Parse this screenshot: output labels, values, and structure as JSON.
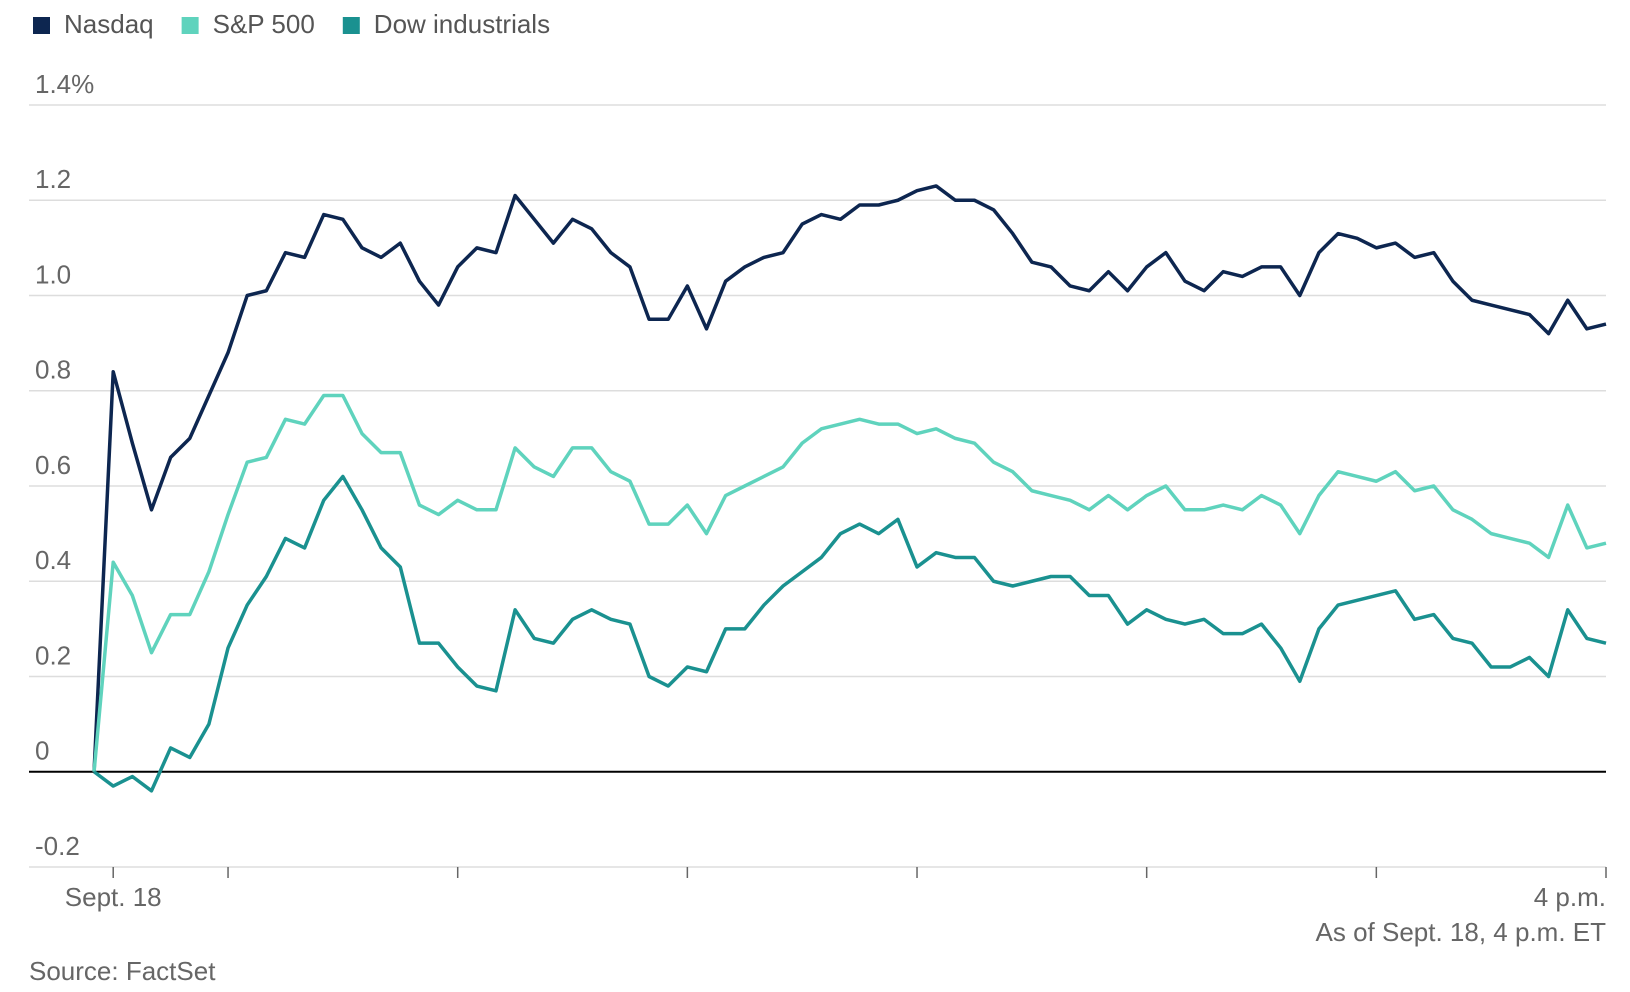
{
  "chart_data": {
    "type": "line",
    "x": [
      -5,
      0,
      5,
      10,
      15,
      20,
      25,
      30,
      35,
      40,
      45,
      50,
      55,
      60,
      65,
      70,
      75,
      80,
      85,
      90,
      95,
      100,
      105,
      110,
      115,
      120,
      125,
      130,
      135,
      140,
      145,
      150,
      155,
      160,
      165,
      170,
      175,
      180,
      185,
      190,
      195,
      200,
      205,
      210,
      215,
      220,
      225,
      230,
      235,
      240,
      245,
      250,
      255,
      260,
      265,
      270,
      275,
      280,
      285,
      290,
      295,
      300,
      305,
      310,
      315,
      320,
      325,
      330,
      335,
      340,
      345,
      350,
      355,
      360,
      365,
      370,
      375,
      380,
      385,
      390
    ],
    "series": [
      {
        "name": "Nasdaq",
        "color": "#0d2650",
        "values": [
          0,
          0.84,
          0.69,
          0.55,
          0.66,
          0.7,
          0.79,
          0.88,
          1.0,
          1.01,
          1.09,
          1.08,
          1.17,
          1.16,
          1.1,
          1.08,
          1.11,
          1.03,
          0.98,
          1.06,
          1.1,
          1.09,
          1.21,
          1.16,
          1.11,
          1.16,
          1.14,
          1.09,
          1.06,
          0.95,
          0.95,
          1.02,
          0.93,
          1.03,
          1.06,
          1.08,
          1.09,
          1.15,
          1.17,
          1.16,
          1.19,
          1.19,
          1.2,
          1.22,
          1.23,
          1.2,
          1.2,
          1.18,
          1.13,
          1.07,
          1.06,
          1.02,
          1.01,
          1.05,
          1.01,
          1.06,
          1.09,
          1.03,
          1.01,
          1.05,
          1.04,
          1.06,
          1.06,
          1.0,
          1.09,
          1.13,
          1.12,
          1.1,
          1.11,
          1.08,
          1.09,
          1.03,
          0.99,
          0.98,
          0.97,
          0.96,
          0.92,
          0.99,
          0.93,
          0.94
        ]
      },
      {
        "name": "S&P 500",
        "color": "#5fd3bd",
        "values": [
          0,
          0.44,
          0.37,
          0.25,
          0.33,
          0.33,
          0.42,
          0.54,
          0.65,
          0.66,
          0.74,
          0.73,
          0.79,
          0.79,
          0.71,
          0.67,
          0.67,
          0.56,
          0.54,
          0.57,
          0.55,
          0.55,
          0.68,
          0.64,
          0.62,
          0.68,
          0.68,
          0.63,
          0.61,
          0.52,
          0.52,
          0.56,
          0.5,
          0.58,
          0.6,
          0.62,
          0.64,
          0.69,
          0.72,
          0.73,
          0.74,
          0.73,
          0.73,
          0.71,
          0.72,
          0.7,
          0.69,
          0.65,
          0.63,
          0.59,
          0.58,
          0.57,
          0.55,
          0.58,
          0.55,
          0.58,
          0.6,
          0.55,
          0.55,
          0.56,
          0.55,
          0.58,
          0.56,
          0.5,
          0.58,
          0.63,
          0.62,
          0.61,
          0.63,
          0.59,
          0.6,
          0.55,
          0.53,
          0.5,
          0.49,
          0.48,
          0.45,
          0.56,
          0.47,
          0.48
        ]
      },
      {
        "name": "Dow industrials",
        "color": "#1a9190",
        "values": [
          0,
          -0.03,
          -0.01,
          -0.04,
          0.05,
          0.03,
          0.1,
          0.26,
          0.35,
          0.41,
          0.49,
          0.47,
          0.57,
          0.62,
          0.55,
          0.47,
          0.43,
          0.27,
          0.27,
          0.22,
          0.18,
          0.17,
          0.34,
          0.28,
          0.27,
          0.32,
          0.34,
          0.32,
          0.31,
          0.2,
          0.18,
          0.22,
          0.21,
          0.3,
          0.3,
          0.35,
          0.39,
          0.42,
          0.45,
          0.5,
          0.52,
          0.5,
          0.53,
          0.43,
          0.46,
          0.45,
          0.45,
          0.4,
          0.39,
          0.4,
          0.41,
          0.41,
          0.37,
          0.37,
          0.31,
          0.34,
          0.32,
          0.31,
          0.32,
          0.29,
          0.29,
          0.31,
          0.26,
          0.19,
          0.3,
          0.35,
          0.36,
          0.37,
          0.38,
          0.32,
          0.33,
          0.28,
          0.27,
          0.22,
          0.22,
          0.24,
          0.2,
          0.34,
          0.28,
          0.27
        ]
      }
    ],
    "xlim": [
      -22,
      390
    ],
    "xticks": [
      {
        "value": 0,
        "label": "Sept. 18"
      },
      {
        "value": 390,
        "label": "4 p.m."
      }
    ],
    "xtick_marks": [
      30,
      90,
      150,
      210,
      270,
      330
    ],
    "ylim": [
      -0.2,
      1.4
    ],
    "yticks": [
      -0.2,
      0,
      0.2,
      0.4,
      0.6,
      0.8,
      {
        "value": 1,
        "label": "1.0"
      },
      1.2,
      {
        "value": 1.4,
        "label": "1.4%"
      }
    ],
    "grid": true,
    "legend": "top-left",
    "note": "As of Sept. 18, 4 p.m. ET",
    "source": "Source: FactSet"
  }
}
